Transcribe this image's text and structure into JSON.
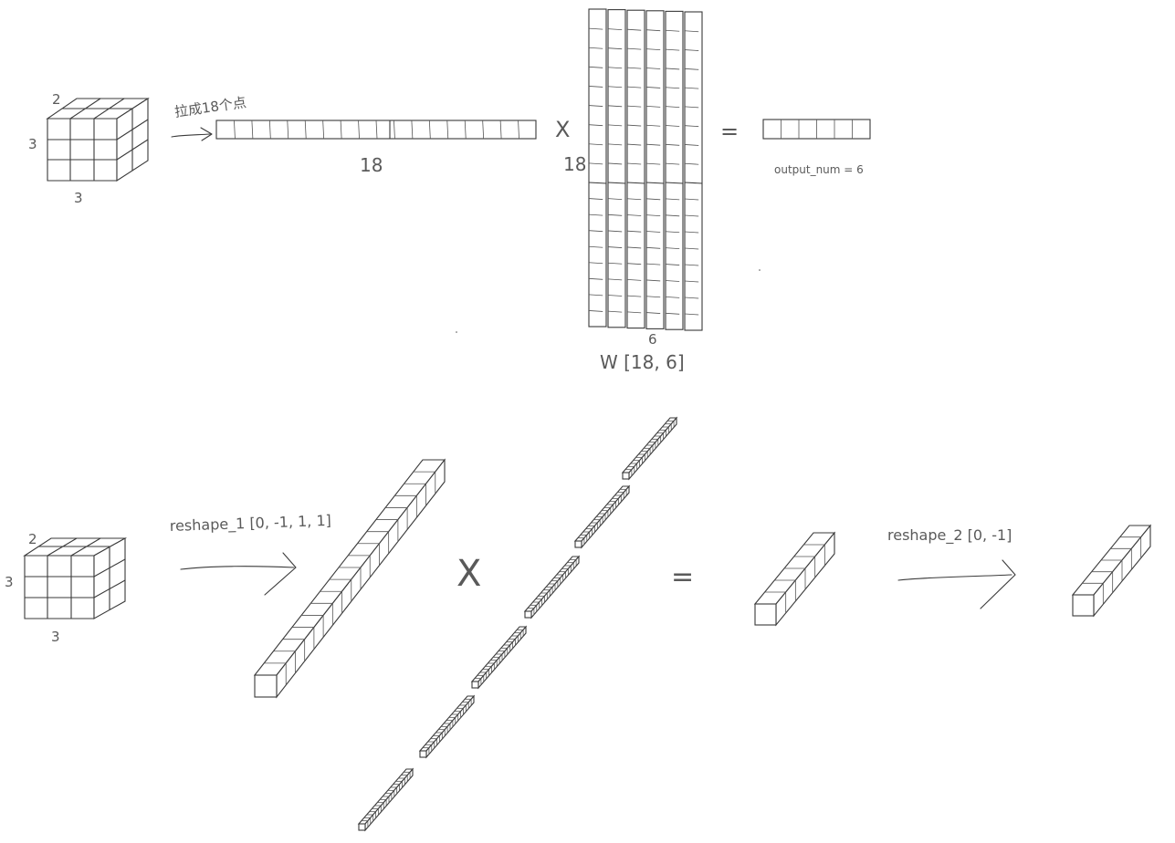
{
  "top": {
    "cube": {
      "label_depth": "2",
      "label_height": "3",
      "label_width": "3"
    },
    "arrow_label": "拉成18个点",
    "vector_length": "18",
    "multiply_symbol": "X",
    "matrix_rows": "18",
    "matrix_cols": "6",
    "matrix_name": "W [18, 6]",
    "equals_symbol": "=",
    "output_label": "output_num = 6"
  },
  "bottom": {
    "cube": {
      "label_depth": "2",
      "label_height": "3",
      "label_width": "3"
    },
    "reshape1_label": "reshape_1 [0, -1, 1, 1]",
    "multiply_symbol": "X",
    "equals_symbol": "=",
    "reshape2_label": "reshape_2 [0, -1]"
  }
}
